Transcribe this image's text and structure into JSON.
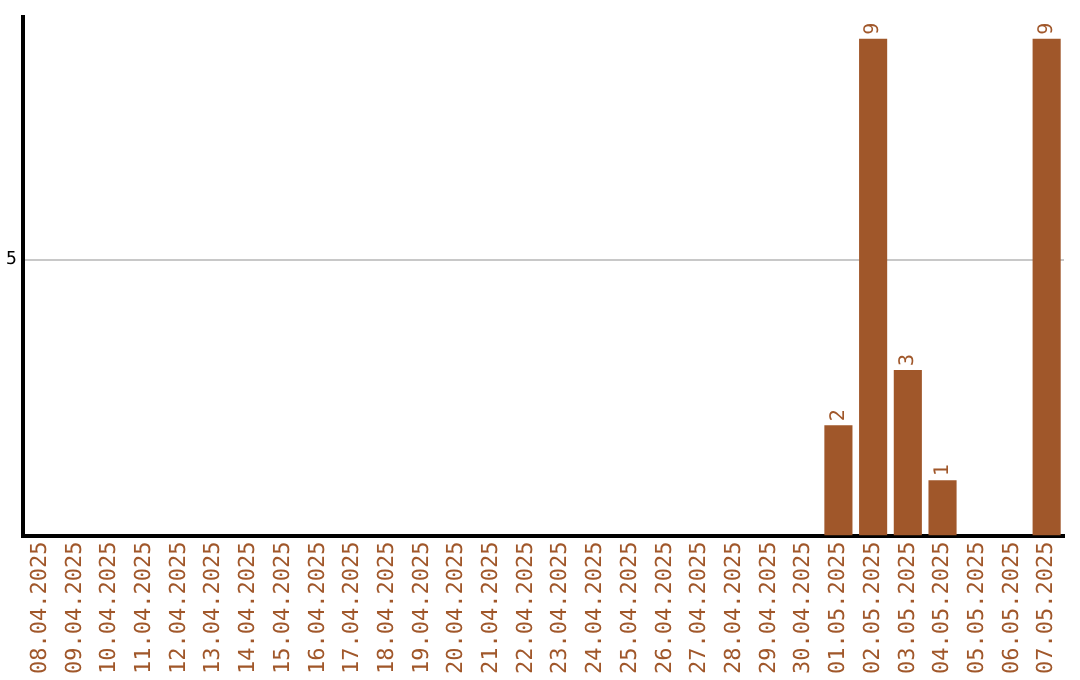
{
  "chart_data": {
    "type": "bar",
    "categories": [
      "08.04.2025",
      "09.04.2025",
      "10.04.2025",
      "11.04.2025",
      "12.04.2025",
      "13.04.2025",
      "14.04.2025",
      "15.04.2025",
      "16.04.2025",
      "17.04.2025",
      "18.04.2025",
      "19.04.2025",
      "20.04.2025",
      "21.04.2025",
      "22.04.2025",
      "23.04.2025",
      "24.04.2025",
      "25.04.2025",
      "26.04.2025",
      "27.04.2025",
      "28.04.2025",
      "29.04.2025",
      "30.04.2025",
      "01.05.2025",
      "02.05.2025",
      "03.05.2025",
      "04.05.2025",
      "05.05.2025",
      "06.05.2025",
      "07.05.2025"
    ],
    "values": [
      null,
      null,
      null,
      null,
      null,
      null,
      null,
      null,
      null,
      null,
      null,
      null,
      null,
      null,
      null,
      null,
      null,
      null,
      null,
      null,
      null,
      null,
      null,
      2,
      9,
      3,
      1,
      null,
      null,
      9
    ],
    "color": "#a0572a",
    "ylim": [
      0,
      9.4
    ],
    "yticks": [
      5
    ],
    "grid": "y",
    "legend": false,
    "data_labels": true
  }
}
